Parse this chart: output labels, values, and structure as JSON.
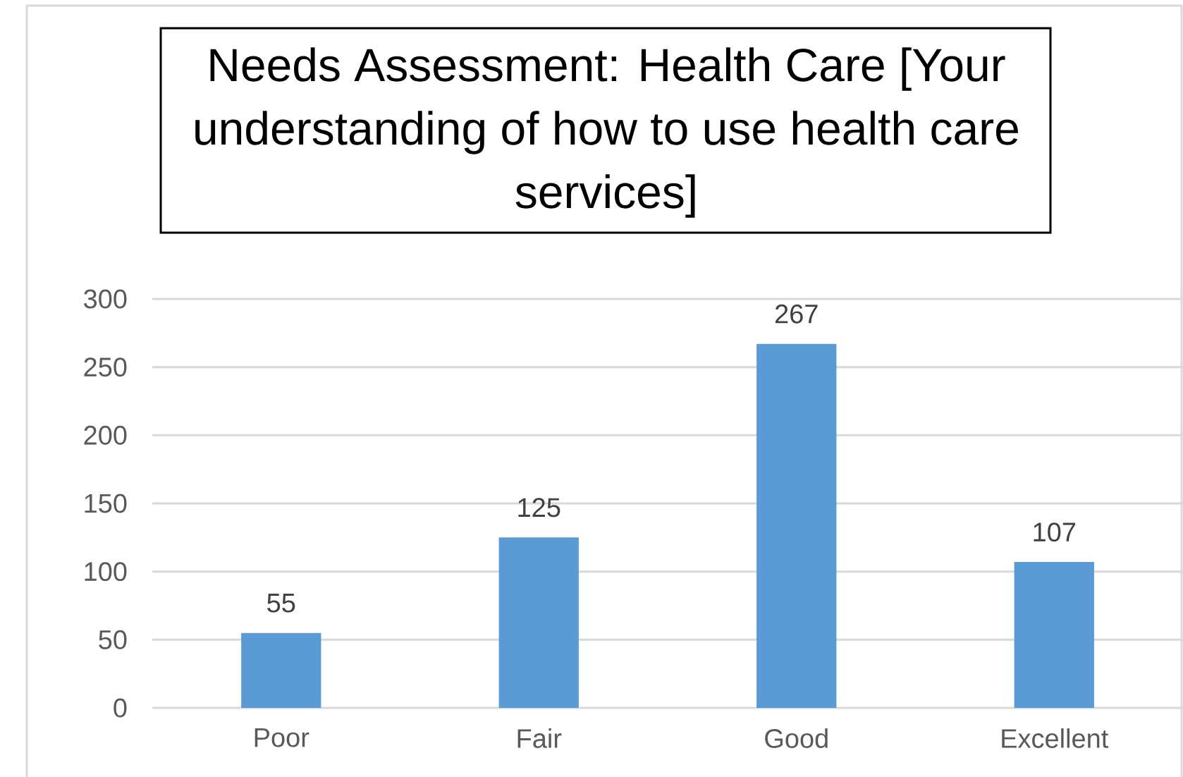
{
  "chart_data": {
    "type": "bar",
    "title": "Needs Assessment: Health Care [Your understanding of how to use health care services]",
    "categories": [
      "Poor",
      "Fair",
      "Good",
      "Excellent"
    ],
    "values": [
      55,
      125,
      267,
      107
    ],
    "color": "#5b9bd5",
    "ylim": [
      0,
      300
    ],
    "yticks": [
      0,
      50,
      100,
      150,
      200,
      250,
      300
    ],
    "grid": "y",
    "data_labels": true
  }
}
